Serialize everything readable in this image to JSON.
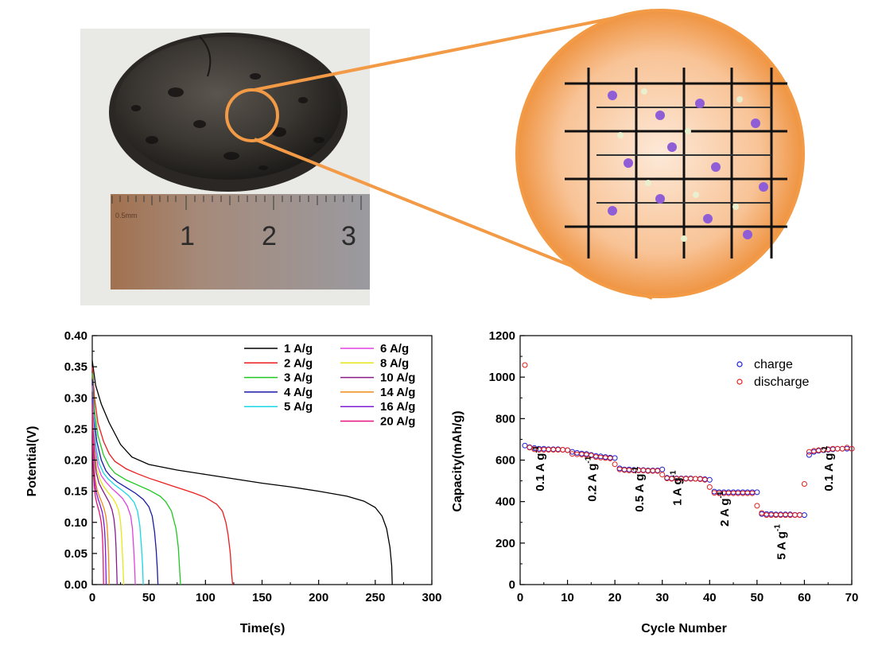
{
  "photo": {
    "ruler_labels": [
      "0.5mm",
      "1",
      "2",
      "3"
    ]
  },
  "charts": [
    {
      "xlabel": "Time(s)",
      "ylabel": "Potential(V)",
      "xticks": [
        "0",
        "50",
        "100",
        "150",
        "200",
        "250",
        "300"
      ],
      "yticks": [
        "0.00",
        "0.05",
        "0.10",
        "0.15",
        "0.20",
        "0.25",
        "0.30",
        "0.35",
        "0.40"
      ],
      "legend": [
        "1 A/g",
        "2 A/g",
        "3 A/g",
        "4 A/g",
        "5 A/g",
        "6 A/g",
        "8 A/g",
        "10 A/g",
        "14 A/g",
        "16 A/g",
        "20 A/g"
      ]
    },
    {
      "xlabel": "Cycle Number",
      "ylabel": "Capacity(mAh/g)",
      "xticks": [
        "0",
        "10",
        "20",
        "30",
        "40",
        "50",
        "60",
        "70"
      ],
      "yticks": [
        "0",
        "200",
        "400",
        "600",
        "800",
        "1000",
        "1200"
      ],
      "legend": [
        "charge",
        "discharge"
      ],
      "annotations": [
        "0.1 A g",
        "0.2 A g",
        "0.5 A g",
        "1 A g",
        "2 A g",
        "5 A g",
        "0.1 A g"
      ],
      "superscript": "-1"
    }
  ],
  "chart_data": [
    {
      "type": "line",
      "xlabel": "Time(s)",
      "ylabel": "Potential(V)",
      "xlim": [
        0,
        300
      ],
      "ylim": [
        0.0,
        0.4
      ],
      "series": [
        {
          "name": "1 A/g",
          "color": "#000000",
          "x": [
            0,
            3,
            8,
            15,
            25,
            35,
            50,
            75,
            100,
            125,
            150,
            175,
            200,
            225,
            240,
            250,
            256,
            260,
            263,
            264.5,
            265
          ],
          "y": [
            0.36,
            0.32,
            0.29,
            0.26,
            0.225,
            0.205,
            0.193,
            0.184,
            0.177,
            0.17,
            0.163,
            0.157,
            0.15,
            0.142,
            0.134,
            0.124,
            0.11,
            0.09,
            0.06,
            0.03,
            0.0
          ]
        },
        {
          "name": "2 A/g",
          "color": "#ee1c1c",
          "x": [
            0,
            2,
            5,
            10,
            15,
            20,
            30,
            40,
            50,
            60,
            70,
            80,
            90,
            100,
            110,
            115,
            118,
            120,
            122,
            123,
            124
          ],
          "y": [
            0.35,
            0.3,
            0.26,
            0.23,
            0.21,
            0.198,
            0.186,
            0.178,
            0.171,
            0.165,
            0.159,
            0.153,
            0.147,
            0.14,
            0.129,
            0.118,
            0.1,
            0.08,
            0.05,
            0.02,
            0.0
          ]
        },
        {
          "name": "3 A/g",
          "color": "#1ec81e",
          "x": [
            0,
            2,
            5,
            10,
            15,
            20,
            30,
            40,
            50,
            60,
            65,
            70,
            74,
            76,
            77,
            78
          ],
          "y": [
            0.34,
            0.28,
            0.24,
            0.208,
            0.19,
            0.179,
            0.168,
            0.16,
            0.152,
            0.142,
            0.133,
            0.118,
            0.09,
            0.06,
            0.03,
            0.0
          ]
        },
        {
          "name": "4 A/g",
          "color": "#1a1aa6",
          "x": [
            0,
            1.5,
            4,
            8,
            12,
            16,
            22,
            30,
            38,
            45,
            50,
            53,
            55,
            56.5,
            57.5,
            58
          ],
          "y": [
            0.33,
            0.27,
            0.23,
            0.2,
            0.183,
            0.174,
            0.165,
            0.156,
            0.147,
            0.137,
            0.125,
            0.11,
            0.085,
            0.055,
            0.025,
            0.0
          ]
        },
        {
          "name": "5 A/g",
          "color": "#18d6e6",
          "x": [
            0,
            1.5,
            3,
            6,
            10,
            14,
            20,
            26,
            32,
            37,
            40,
            42,
            43.5,
            44.5,
            45
          ],
          "y": [
            0.32,
            0.26,
            0.225,
            0.195,
            0.179,
            0.17,
            0.16,
            0.152,
            0.143,
            0.132,
            0.118,
            0.095,
            0.06,
            0.03,
            0.0
          ]
        },
        {
          "name": "6 A/g",
          "color": "#e040e0",
          "x": [
            0,
            1,
            2.5,
            5,
            8,
            12,
            17,
            22,
            27,
            31,
            34,
            35.5,
            36.5,
            37.5,
            38
          ],
          "y": [
            0.32,
            0.26,
            0.22,
            0.19,
            0.175,
            0.165,
            0.155,
            0.147,
            0.138,
            0.126,
            0.11,
            0.09,
            0.06,
            0.025,
            0.0
          ]
        },
        {
          "name": "8 A/g",
          "color": "#e6e61a",
          "x": [
            0,
            1,
            2,
            4,
            7,
            10,
            14,
            18,
            21,
            23.5,
            25,
            26,
            26.8,
            27.4,
            27.8
          ],
          "y": [
            0.31,
            0.25,
            0.215,
            0.185,
            0.168,
            0.158,
            0.148,
            0.139,
            0.13,
            0.118,
            0.1,
            0.075,
            0.045,
            0.02,
            0.0
          ]
        },
        {
          "name": "10 A/g",
          "color": "#8a1a8a",
          "x": [
            0,
            0.8,
            1.8,
            3.5,
            6,
            9,
            12,
            15,
            17.5,
            19.2,
            20.3,
            21,
            21.5,
            22
          ],
          "y": [
            0.31,
            0.245,
            0.21,
            0.18,
            0.163,
            0.152,
            0.142,
            0.132,
            0.12,
            0.105,
            0.085,
            0.06,
            0.03,
            0.0
          ]
        },
        {
          "name": "14 A/g",
          "color": "#f08a1a",
          "x": [
            0,
            0.6,
            1.3,
            2.5,
            4.2,
            6.2,
            8.5,
            10.5,
            12,
            13.1,
            13.8,
            14.3,
            14.7,
            15
          ],
          "y": [
            0.3,
            0.24,
            0.2,
            0.17,
            0.153,
            0.142,
            0.132,
            0.122,
            0.11,
            0.095,
            0.075,
            0.05,
            0.025,
            0.0
          ]
        },
        {
          "name": "16 A/g",
          "color": "#7d1ad6",
          "x": [
            0,
            0.5,
            1.1,
            2.1,
            3.6,
            5.3,
            7.1,
            8.7,
            9.9,
            10.8,
            11.4,
            11.8,
            12.1,
            12.3
          ],
          "y": [
            0.3,
            0.235,
            0.195,
            0.165,
            0.148,
            0.137,
            0.127,
            0.117,
            0.105,
            0.09,
            0.07,
            0.045,
            0.02,
            0.0
          ]
        },
        {
          "name": "20 A/g",
          "color": "#e6147a",
          "x": [
            0,
            0.4,
            0.9,
            1.7,
            2.9,
            4.3,
            5.8,
            7.1,
            8.1,
            8.8,
            9.3,
            9.6,
            9.85,
            10
          ],
          "y": [
            0.29,
            0.225,
            0.185,
            0.157,
            0.14,
            0.129,
            0.119,
            0.109,
            0.098,
            0.083,
            0.065,
            0.042,
            0.018,
            0.0
          ]
        }
      ]
    },
    {
      "type": "scatter",
      "xlabel": "Cycle Number",
      "ylabel": "Capacity(mAh/g)",
      "xlim": [
        0,
        70
      ],
      "ylim": [
        0,
        1200
      ],
      "legend_position": "top-right",
      "annotations": [
        {
          "text": "0.1 A g-1",
          "x": 5,
          "y": 450
        },
        {
          "text": "0.2 A g-1",
          "x": 16,
          "y": 400
        },
        {
          "text": "0.5 A g-1",
          "x": 26,
          "y": 350
        },
        {
          "text": "1 A g-1",
          "x": 34,
          "y": 380
        },
        {
          "text": "2 A g-1",
          "x": 44,
          "y": 280
        },
        {
          "text": "5 A g-1",
          "x": 56,
          "y": 120
        },
        {
          "text": "0.1 A g-1",
          "x": 66,
          "y": 450
        }
      ],
      "series": [
        {
          "name": "charge",
          "color": "#1a1ad0",
          "x": [
            1,
            2,
            3,
            4,
            5,
            6,
            7,
            8,
            9,
            10,
            11,
            12,
            13,
            14,
            15,
            16,
            17,
            18,
            19,
            20,
            21,
            22,
            23,
            24,
            25,
            26,
            27,
            28,
            29,
            30,
            31,
            32,
            33,
            34,
            35,
            36,
            37,
            38,
            39,
            40,
            41,
            42,
            43,
            44,
            45,
            46,
            47,
            48,
            49,
            50,
            51,
            52,
            53,
            54,
            55,
            56,
            57,
            58,
            59,
            60,
            61,
            62,
            63,
            64,
            65,
            66,
            67,
            68,
            69,
            70
          ],
          "values": [
            670,
            662,
            658,
            655,
            655,
            652,
            652,
            652,
            650,
            648,
            640,
            635,
            632,
            630,
            625,
            620,
            618,
            615,
            612,
            610,
            560,
            555,
            555,
            553,
            552,
            552,
            550,
            550,
            550,
            555,
            515,
            512,
            512,
            512,
            512,
            512,
            510,
            510,
            508,
            505,
            448,
            445,
            445,
            445,
            445,
            445,
            445,
            445,
            445,
            445,
            340,
            340,
            340,
            338,
            338,
            338,
            338,
            336,
            336,
            335,
            625,
            640,
            645,
            648,
            650,
            652,
            655,
            655,
            655,
            655
          ]
        },
        {
          "name": "discharge",
          "color": "#e0201a",
          "x": [
            1,
            2,
            3,
            4,
            5,
            6,
            7,
            8,
            9,
            10,
            11,
            12,
            13,
            14,
            15,
            16,
            17,
            18,
            19,
            20,
            21,
            22,
            23,
            24,
            25,
            26,
            27,
            28,
            29,
            30,
            31,
            32,
            33,
            34,
            35,
            36,
            37,
            38,
            39,
            40,
            41,
            42,
            43,
            44,
            45,
            46,
            47,
            48,
            49,
            50,
            51,
            52,
            53,
            54,
            55,
            56,
            57,
            58,
            59,
            60,
            61,
            62,
            63,
            64,
            65,
            66,
            67,
            68,
            69,
            70
          ],
          "values": [
            1058,
            660,
            652,
            650,
            650,
            650,
            650,
            650,
            650,
            648,
            630,
            628,
            627,
            625,
            622,
            615,
            612,
            610,
            608,
            580,
            555,
            552,
            550,
            550,
            550,
            550,
            548,
            548,
            548,
            530,
            512,
            510,
            510,
            510,
            510,
            510,
            510,
            508,
            505,
            470,
            442,
            440,
            440,
            440,
            440,
            440,
            440,
            440,
            440,
            380,
            345,
            335,
            335,
            335,
            335,
            335,
            335,
            335,
            335,
            485,
            640,
            645,
            648,
            650,
            652,
            655,
            655,
            655,
            660,
            655
          ]
        }
      ]
    }
  ]
}
